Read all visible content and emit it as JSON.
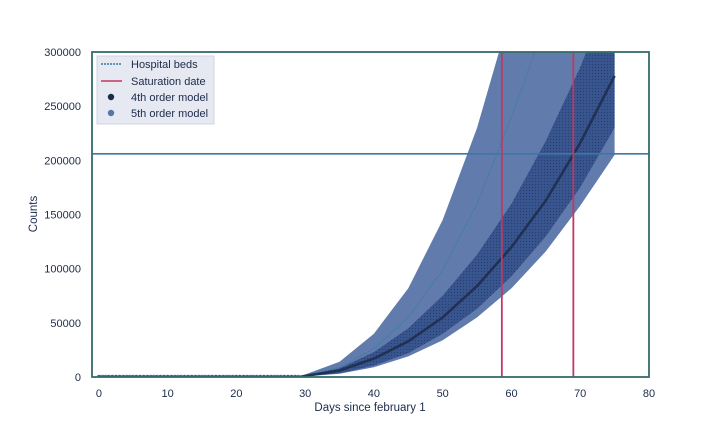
{
  "chart_data": {
    "type": "line",
    "title": "",
    "xlabel": "Days since february 1",
    "ylabel": "Counts",
    "xlim": [
      -1,
      80
    ],
    "ylim": [
      0,
      300000
    ],
    "x_ticks": [
      0,
      10,
      20,
      30,
      40,
      50,
      60,
      70,
      80
    ],
    "y_ticks": [
      0,
      50000,
      100000,
      150000,
      200000,
      250000,
      300000
    ],
    "x_tick_labels": [
      "0",
      "10",
      "20",
      "30",
      "40",
      "50",
      "60",
      "70",
      "80"
    ],
    "y_tick_labels": [
      "0",
      "50000",
      "100000",
      "150000",
      "200000",
      "250000",
      "300000"
    ],
    "grid": false,
    "legend_position": "top-left",
    "legend": {
      "hospital_beds": "Hospital beds",
      "saturation_date": "Saturation date",
      "model4": "4th order model",
      "model5": "5th order model"
    },
    "hospital_beds": 206000,
    "saturation_dates": [
      58.6,
      69.0
    ],
    "observed_days_end": 29,
    "model4": {
      "x": [
        29,
        35,
        40,
        45,
        50,
        55,
        60,
        65,
        70,
        75
      ],
      "y": [
        0,
        6000,
        17000,
        33000,
        55000,
        84000,
        120000,
        163000,
        216000,
        278000
      ]
    },
    "model4_band": {
      "x": [
        29,
        35,
        40,
        45,
        50,
        55,
        60,
        65,
        70,
        75
      ],
      "lower": [
        0,
        3500,
        10500,
        22000,
        40000,
        63000,
        93000,
        130000,
        175000,
        230000
      ],
      "upper": [
        0,
        8000,
        23000,
        45000,
        75000,
        113000,
        160000,
        218000,
        286000,
        365000
      ]
    },
    "model5": {
      "x": [
        29,
        35,
        40,
        45,
        50,
        55,
        60,
        62,
        64
      ],
      "y": [
        0,
        9000,
        26000,
        55000,
        99000,
        160000,
        240000,
        275000,
        312000
      ]
    },
    "model5_band": {
      "x": [
        29,
        35,
        40,
        45,
        50,
        55,
        60,
        65,
        70,
        75
      ],
      "lower": [
        0,
        3000,
        9000,
        19000,
        34000,
        55000,
        82000,
        116000,
        158000,
        205000
      ],
      "upper": [
        0,
        14000,
        40000,
        82000,
        145000,
        230000,
        340000,
        470000,
        620000,
        800000
      ]
    },
    "colors": {
      "hospital_beds": "#3a78a8",
      "saturation": "#c2385f",
      "model4_line": "#1c2b4a",
      "model4_band": "#34518d",
      "model5_band": "#5874a8",
      "observed": "#3a72a8",
      "frame": "#356c6c"
    }
  }
}
